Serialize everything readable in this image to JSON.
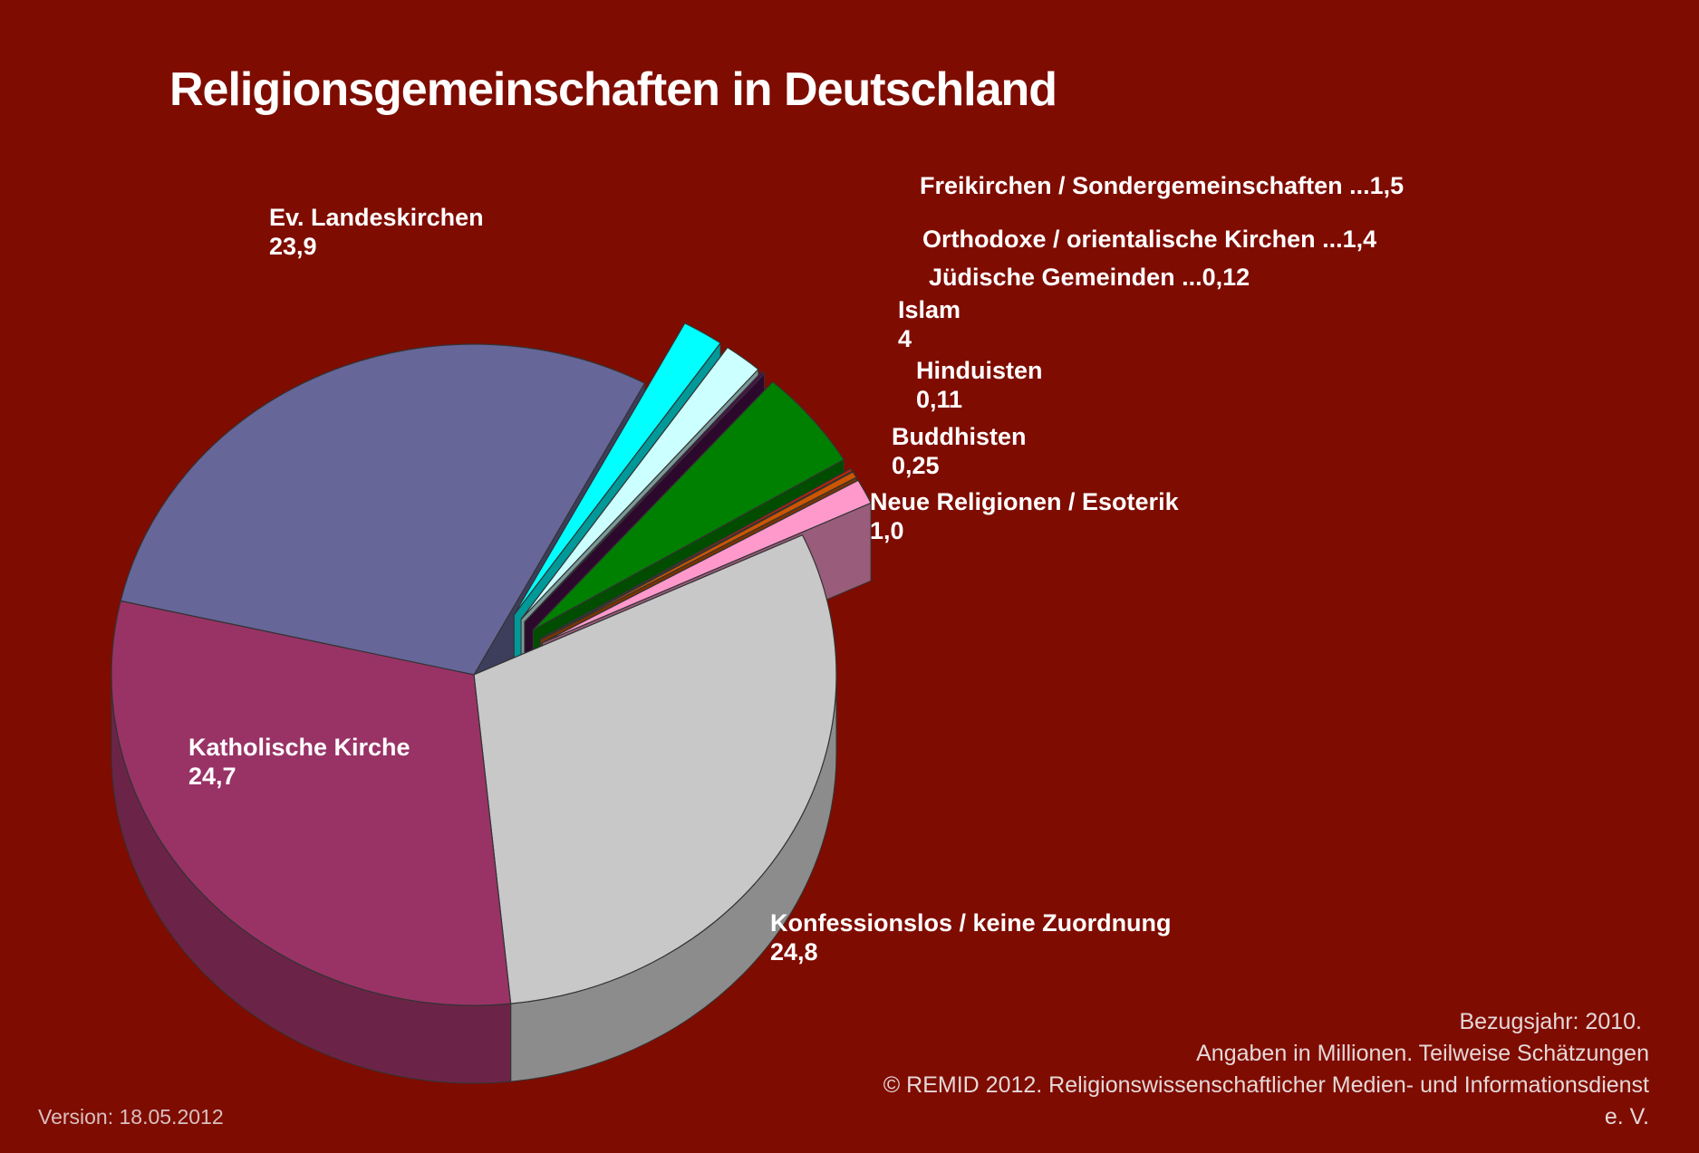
{
  "chart_data": {
    "type": "pie",
    "title": "Religionsgemeinschaften in Deutschland",
    "categories": [
      "Konfessionslos / keine Zuordnung",
      "Katholische Kirche",
      "Ev. Landeskirchen",
      "Freikirchen / Sondergemeinschaften ...",
      "Orthodoxe / orientalische Kirchen ...",
      "Jüdische Gemeinden ...",
      "Islam",
      "Hinduisten",
      "Buddhisten",
      "Neue Religionen / Esoterik"
    ],
    "values": [
      24.8,
      24.7,
      23.9,
      1.5,
      1.4,
      0.12,
      4,
      0.11,
      0.25,
      1.0
    ],
    "value_labels": [
      "24,8",
      "24,7",
      "23,9",
      "1,5",
      "1,4",
      "0,12",
      "4",
      "0,11",
      "0,25",
      "1,0"
    ],
    "colors": [
      "#c8c8c8",
      "#993366",
      "#666699",
      "#00ffff",
      "#ccffff",
      "#4a0f4a",
      "#008000",
      "#cc2200",
      "#cc5500",
      "#ff99cc"
    ],
    "notes": [
      "Bezugsjahr: 2010.",
      "Angaben in Millionen. Teilweise Schätzungen",
      "© REMID 2012. Religionswissenschaftlicher Medien- und Informationsdienst",
      "e. V."
    ],
    "version": "Version: 18.05.2012"
  }
}
